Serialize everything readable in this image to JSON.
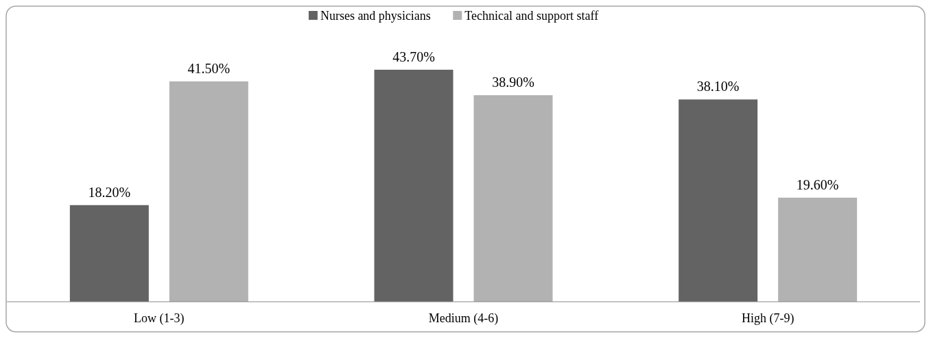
{
  "chart_data": {
    "type": "bar",
    "categories": [
      "Low (1-3)",
      "Medium (4-6)",
      "High (7-9)"
    ],
    "series": [
      {
        "name": "Nurses and physicians",
        "color": "#636363",
        "values": [
          18.2,
          43.7,
          38.1
        ],
        "value_labels": [
          "18.20%",
          "43.70%",
          "38.10%"
        ]
      },
      {
        "name": "Technical and support staff",
        "color": "#b2b2b2",
        "values": [
          41.5,
          38.9,
          19.6
        ],
        "value_labels": [
          "41.50%",
          "38.90%",
          "19.60%"
        ]
      }
    ],
    "tick_labels": "x",
    "grid": false,
    "legend": "top"
  }
}
